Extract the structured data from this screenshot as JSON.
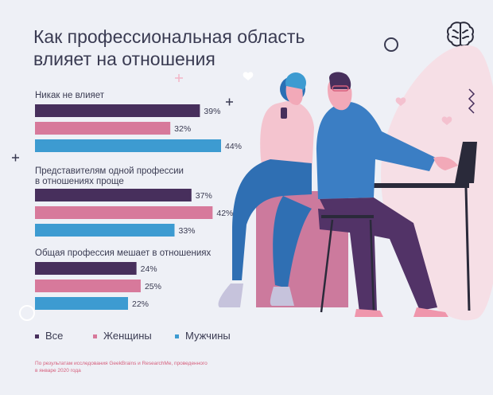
{
  "title": "Как профессиональная область влияет на отношения",
  "logo": {
    "icon": "brain-icon"
  },
  "colors": {
    "all": "#472f5c",
    "women": "#d7799b",
    "men": "#3d9bd1",
    "text": "#3a3b52",
    "accent": "#d6607d"
  },
  "chart_data": {
    "type": "bar",
    "orientation": "horizontal",
    "groups": [
      {
        "label": "Никак не влияет",
        "values": [
          39,
          32,
          44
        ]
      },
      {
        "label": "Представителям одной профессии в отношениях проще",
        "values": [
          37,
          42,
          33
        ]
      },
      {
        "label": "Общая профессия мешает в отношениях",
        "values": [
          24,
          25,
          22
        ]
      }
    ],
    "series": [
      {
        "name": "Все",
        "color": "#472f5c"
      },
      {
        "name": "Женщины",
        "color": "#d7799b"
      },
      {
        "name": "Мужчины",
        "color": "#3d9bd1"
      }
    ],
    "value_suffix": "%",
    "xlim": [
      0,
      44
    ],
    "grid": false,
    "legend_position": "bottom-left"
  },
  "source": "По результатам исследования GeekBrains и ResearchMe, проведенного в январе 2020 года"
}
